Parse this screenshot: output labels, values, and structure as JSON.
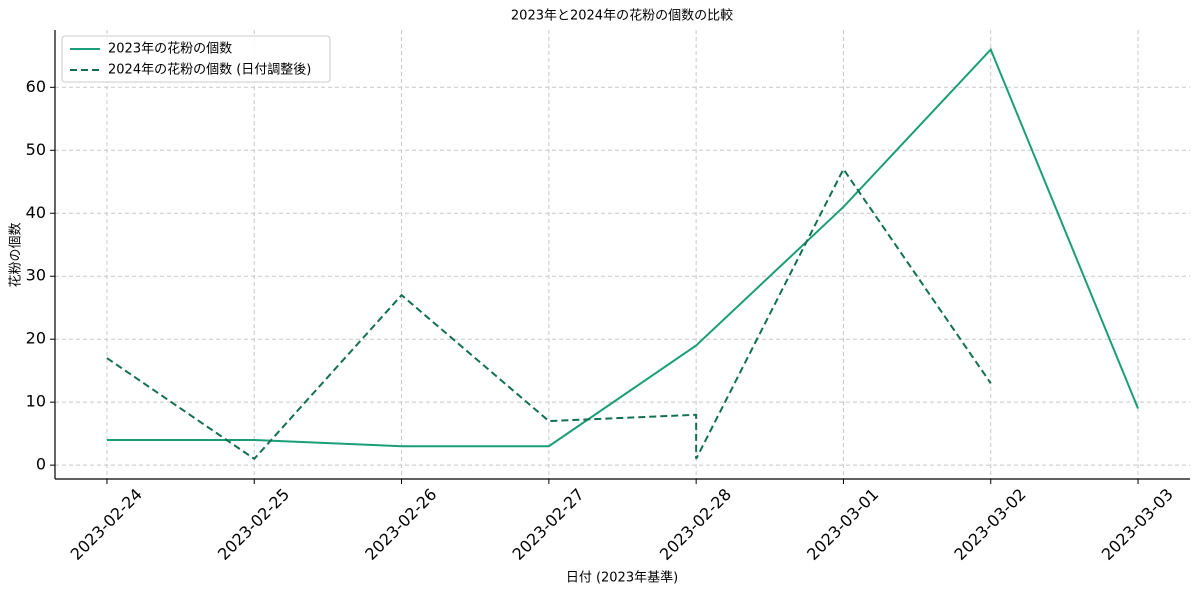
{
  "chart_data": {
    "type": "line",
    "title": "2023年と2024年の花粉の個数の比較",
    "x_label": "日付 (2023年基準)",
    "y_label": "花粉の個数",
    "xlim": [
      "2023-02-23T15:32",
      "2023-03-03T08:28"
    ],
    "xticks": [
      "2023-02-24",
      "2023-02-25",
      "2023-02-26",
      "2023-02-27",
      "2023-02-28",
      "2023-03-01",
      "2023-03-02",
      "2023-03-03"
    ],
    "ylim": [
      -2.2,
      69.1
    ],
    "yticks": [
      0,
      10,
      20,
      30,
      40,
      50,
      60
    ],
    "grid": true,
    "legend": "upper left",
    "series": [
      {
        "name": "2023年の花粉の個数",
        "color": "#1b9e77",
        "dash": false,
        "x": [
          "2023-02-24",
          "2023-02-25",
          "2023-02-26",
          "2023-02-27",
          "2023-02-28",
          "2023-03-01",
          "2023-03-02",
          "2023-03-03"
        ],
        "values": [
          4,
          4,
          3,
          3,
          19,
          41,
          66,
          9
        ]
      },
      {
        "name": "2024年の花粉の個数 (日付調整後)",
        "color": "#13704f",
        "dash": true,
        "x": [
          "2023-02-24",
          "2023-02-25",
          "2023-02-26",
          "2023-02-27",
          "2023-02-28",
          "2023-02-28",
          "2023-03-01",
          "2023-03-02"
        ],
        "values": [
          17,
          1,
          27,
          7,
          8,
          1,
          47,
          13
        ]
      }
    ]
  }
}
